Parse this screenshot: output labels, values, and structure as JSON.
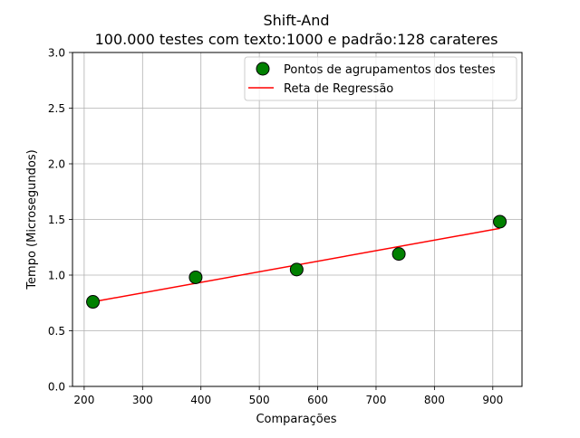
{
  "chart_data": {
    "type": "scatter",
    "title": "Shift-And",
    "subtitle": "100.000 testes com texto:1000 e padrão:128 carateres",
    "xlabel": "Comparações",
    "ylabel": "Tempo (Microsegundos)",
    "xlim": [
      180,
      950
    ],
    "ylim": [
      0.0,
      3.0
    ],
    "xticks": [
      200,
      300,
      400,
      500,
      600,
      700,
      800,
      900
    ],
    "xtick_labels": [
      "200",
      "300",
      "400",
      "500",
      "600",
      "700",
      "800",
      "900"
    ],
    "yticks": [
      0.0,
      0.5,
      1.0,
      1.5,
      2.0,
      2.5,
      3.0
    ],
    "ytick_labels": [
      "0.0",
      "0.5",
      "1.0",
      "1.5",
      "2.0",
      "2.5",
      "3.0"
    ],
    "grid": true,
    "legend_position": "top-right",
    "series": [
      {
        "name": "Pontos de agrupamentos dos testes",
        "kind": "scatter",
        "color": "#008000",
        "edge_color": "#000000",
        "points": [
          {
            "x": 215,
            "y": 0.76
          },
          {
            "x": 391,
            "y": 0.98
          },
          {
            "x": 564,
            "y": 1.05
          },
          {
            "x": 739,
            "y": 1.19
          },
          {
            "x": 912,
            "y": 1.48
          }
        ]
      },
      {
        "name": "Reta de Regressão",
        "kind": "line",
        "color": "#ff0000",
        "points": [
          {
            "x": 215,
            "y": 0.76
          },
          {
            "x": 912,
            "y": 1.42
          }
        ]
      }
    ]
  }
}
